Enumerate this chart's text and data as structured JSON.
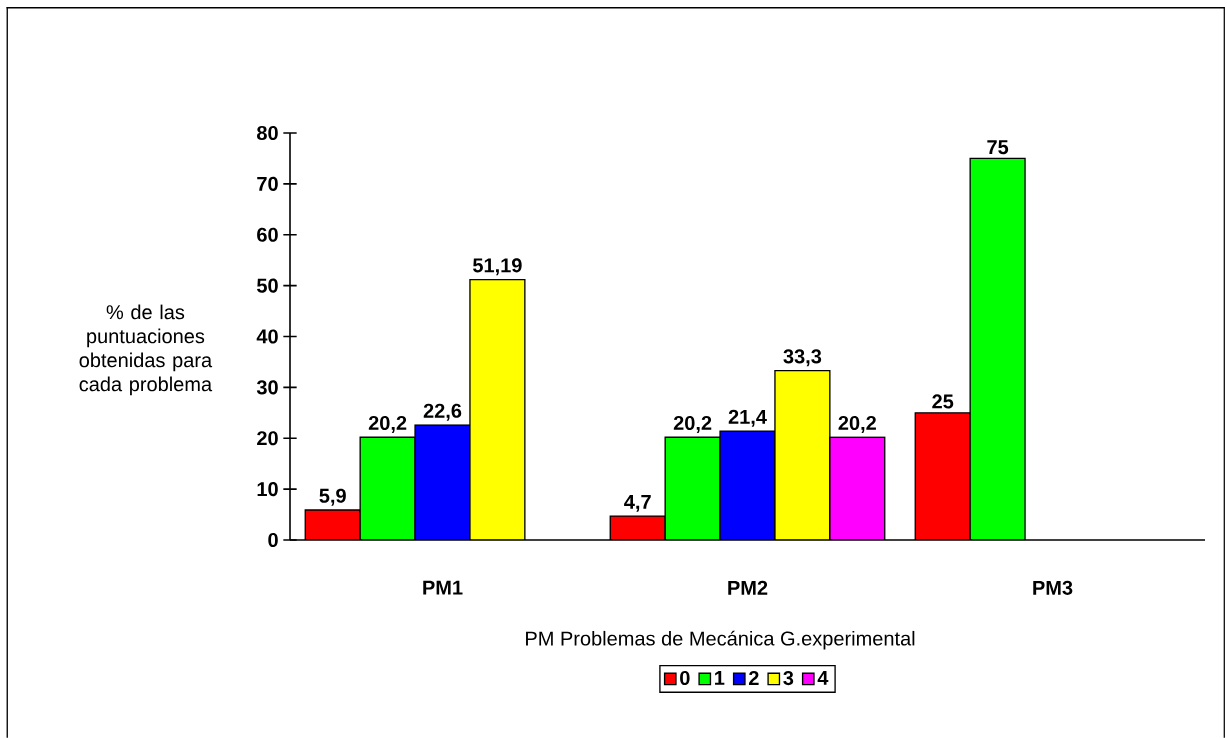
{
  "chart_data": {
    "type": "bar",
    "categories": [
      "PM1",
      "PM2",
      "PM3"
    ],
    "series": [
      {
        "name": "0",
        "color": "#ff0000",
        "values": [
          5.9,
          4.7,
          25
        ],
        "value_labels": [
          "5,9",
          "4,7",
          "25"
        ]
      },
      {
        "name": "1",
        "color": "#00ff00",
        "values": [
          20.2,
          20.2,
          75
        ],
        "value_labels": [
          "20,2",
          "20,2",
          "75"
        ]
      },
      {
        "name": "2",
        "color": "#0000ff",
        "values": [
          22.6,
          21.4,
          null
        ],
        "value_labels": [
          "22,6",
          "21,4",
          null
        ]
      },
      {
        "name": "3",
        "color": "#ffff00",
        "values": [
          51.19,
          33.3,
          null
        ],
        "value_labels": [
          "51,19",
          "33,3",
          null
        ]
      },
      {
        "name": "4",
        "color": "#ff00ff",
        "values": [
          null,
          20.2,
          null
        ],
        "value_labels": [
          null,
          "20,2",
          null
        ]
      }
    ],
    "xlabel": "PM Problemas de Mecánica G.experimental",
    "ylabel": "% de las puntuaciones obtenidas para cada problema",
    "ylim": [
      0,
      80
    ],
    "yticks": [
      0,
      10,
      20,
      30,
      40,
      50,
      60,
      70,
      80
    ],
    "legend": "bottom"
  }
}
